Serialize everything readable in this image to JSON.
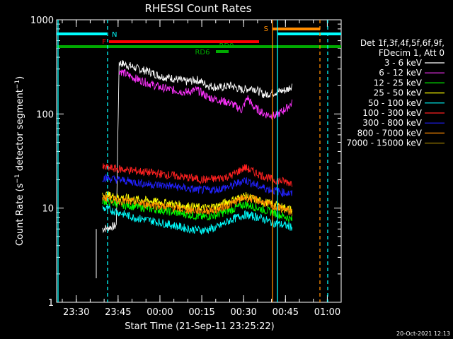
{
  "chart_data": {
    "type": "line",
    "title": "RHESSI Count Rates",
    "xlabel": "Start Time (21-Sep-11 23:25:22)",
    "ylabel_main": "Count Rate (s",
    "ylabel_exp1": "−1",
    "ylabel_mid": " detector segment",
    "ylabel_exp2": "−1",
    "ylabel_end": ")",
    "y_scale": "log",
    "ylim": [
      1,
      1000
    ],
    "xlim_minutes_from_2325_22": [
      -2.4,
      99.6
    ],
    "x_tick_labels": [
      "23:30",
      "23:45",
      "00:00",
      "00:15",
      "00:30",
      "00:45",
      "01:00"
    ],
    "y_tick_labels": [
      "1",
      "10",
      "100",
      "1000"
    ],
    "legend_header": [
      "Det 1f,3f,4f,5f,6f,9f,",
      "FDecim 1, Att 0"
    ],
    "series": [
      {
        "name": "3 - 6 keV",
        "color": "#ffffff",
        "x": [
          14,
          19,
          20,
          23,
          27,
          31,
          35,
          39,
          44,
          48,
          52,
          56,
          60,
          64,
          68,
          72,
          76,
          80,
          82
        ],
        "y": [
          6,
          6.5,
          350,
          330,
          300,
          280,
          250,
          240,
          220,
          230,
          200,
          190,
          200,
          180,
          190,
          160,
          170,
          180,
          200
        ]
      },
      {
        "name": "6 - 12 keV",
        "color": "#ff33ff",
        "x": [
          20,
          23,
          27,
          31,
          35,
          39,
          44,
          48,
          52,
          56,
          60,
          64,
          66,
          68,
          72,
          76,
          80,
          82
        ],
        "y": [
          290,
          260,
          230,
          210,
          190,
          180,
          170,
          180,
          150,
          140,
          130,
          110,
          150,
          120,
          100,
          95,
          115,
          130
        ]
      },
      {
        "name": "12 - 25 keV",
        "color": "#00ff00",
        "x": [
          14,
          20,
          25,
          30,
          35,
          40,
          45,
          50,
          55,
          60,
          65,
          70,
          75,
          80,
          82
        ],
        "y": [
          12,
          11,
          10.5,
          10,
          9.5,
          9,
          8.5,
          8,
          8.5,
          9.5,
          11,
          10,
          9,
          8,
          7.5
        ]
      },
      {
        "name": "25 - 50 keV",
        "color": "#ffff00",
        "x": [
          14,
          20,
          25,
          30,
          35,
          40,
          45,
          50,
          55,
          60,
          65,
          70,
          75,
          80,
          82
        ],
        "y": [
          14,
          13,
          12.5,
          12,
          11.5,
          11,
          10.5,
          10,
          10.5,
          12,
          13.5,
          12,
          11,
          10,
          9.5
        ]
      },
      {
        "name": "50 - 100 keV",
        "color": "#00ffff",
        "x": [
          14,
          20,
          25,
          30,
          35,
          40,
          45,
          50,
          55,
          60,
          65,
          70,
          75,
          80,
          82
        ],
        "y": [
          10,
          9,
          8,
          7.5,
          7,
          6.5,
          6,
          5.8,
          6.2,
          7.5,
          8.5,
          8,
          7,
          6.5,
          6.3
        ]
      },
      {
        "name": "100 - 300 keV",
        "color": "#ff2020",
        "x": [
          14,
          20,
          25,
          30,
          35,
          40,
          45,
          50,
          55,
          60,
          65,
          70,
          75,
          80,
          82
        ],
        "y": [
          27,
          26,
          25,
          24,
          23,
          22,
          21,
          20,
          20.5,
          22,
          27,
          23,
          20,
          19,
          18.5
        ]
      },
      {
        "name": "300 - 800 keV",
        "color": "#2222ff",
        "x": [
          14,
          20,
          25,
          30,
          35,
          40,
          45,
          50,
          55,
          60,
          65,
          70,
          75,
          80,
          82
        ],
        "y": [
          21,
          20,
          19,
          18,
          17.5,
          17,
          16,
          15.5,
          15.8,
          17,
          20,
          17,
          15.5,
          14.5,
          14
        ]
      },
      {
        "name": "800 - 7000 keV",
        "color": "#ff8c00",
        "x": [
          14,
          20,
          25,
          30,
          35,
          40,
          45,
          50,
          55,
          60,
          65,
          70,
          75,
          80,
          82
        ],
        "y": [
          13,
          12,
          11.5,
          11,
          10.5,
          10,
          9.5,
          9.3,
          9.6,
          11,
          13,
          12,
          10.5,
          9.5,
          9
        ]
      },
      {
        "name": "7000 - 15000 keV",
        "color": "#a08000",
        "x": [],
        "y": []
      }
    ],
    "bars": [
      {
        "label": "N",
        "color": "#00ffff"
      },
      {
        "label": "F",
        "color": "#ff0000"
      },
      {
        "label": "RD9",
        "color": "#00aa00"
      },
      {
        "label": "RD6",
        "color": "#00aa00"
      },
      {
        "label": "S",
        "color": "#ff8c00"
      }
    ],
    "timestamp": "20-Oct-2021 12:13"
  }
}
